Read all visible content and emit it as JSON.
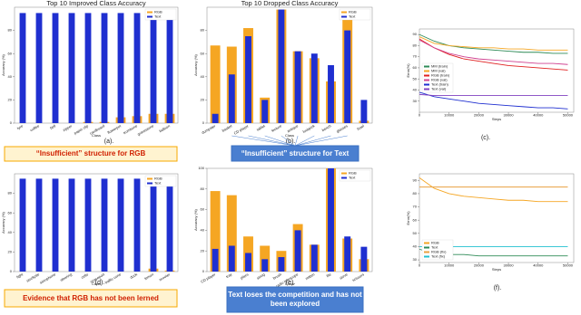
{
  "chart_data": [
    {
      "type": "bar",
      "title": "Top 10 Improved Class Accuracy",
      "x_label": "Class",
      "y_label": "Accuracy (%)",
      "legend": "upper right",
      "categories": [
        "tyre",
        "coffee",
        "bell",
        "zipper",
        "paper clip",
        "cardboard",
        "flowerpot",
        "trombone",
        "gravestone",
        "balloon"
      ],
      "series": [
        {
          "name": "RGB",
          "color": "#f5a623",
          "values": [
            0,
            0,
            0,
            0,
            1,
            1,
            5,
            6,
            8,
            8
          ]
        },
        {
          "name": "Text",
          "color": "#1f2fd0",
          "values": [
            95,
            95,
            95,
            95,
            95,
            95,
            95,
            95,
            95,
            95
          ]
        }
      ],
      "ylim": [
        0,
        100
      ],
      "yticks": [
        0,
        20,
        40,
        60,
        80
      ],
      "caption": "(a).",
      "callout": "“Insufficient”  structure for RGB"
    },
    {
      "type": "bar",
      "title": "Top 10 Dropped Class Accuracy",
      "x_label": "Class",
      "y_label": "Accuracy (%)",
      "legend": "upper right",
      "categories": [
        "dumpster",
        "basket",
        "CD player",
        "tablet",
        "lecture",
        "antique",
        "lockpick",
        "bench",
        "glasses",
        "bowl"
      ],
      "series": [
        {
          "name": "RGB",
          "color": "#f5a623",
          "values": [
            67,
            66,
            82,
            22,
            98,
            62,
            56,
            36,
            90,
            2
          ]
        },
        {
          "name": "Text",
          "color": "#1f2fd0",
          "values": [
            8,
            42,
            75,
            20,
            98,
            62,
            60,
            50,
            80,
            20
          ]
        }
      ],
      "ylim": [
        0,
        100
      ],
      "yticks": [
        0,
        20,
        40,
        60,
        80
      ],
      "caption": "(b).",
      "callout": "“Insufficient”   structure for Text"
    },
    {
      "type": "line",
      "x_label": "Steps",
      "y_label": "Error(%)",
      "legend": "center left",
      "x": [
        0,
        5000,
        10000,
        15000,
        20000,
        25000,
        30000,
        35000,
        40000,
        45000,
        50000
      ],
      "series": [
        {
          "name": "MM (train)",
          "color": "#2e8b57",
          "values": [
            90,
            84,
            80,
            78,
            77,
            76,
            75,
            74,
            74,
            73,
            73
          ]
        },
        {
          "name": "MM (val)",
          "color": "#f5a623",
          "values": [
            88,
            82,
            80,
            79,
            78,
            78,
            77,
            77,
            76,
            76,
            76
          ]
        },
        {
          "name": "RGB (train)",
          "color": "#e02020",
          "values": [
            86,
            78,
            72,
            68,
            66,
            64,
            62,
            61,
            60,
            59,
            58
          ]
        },
        {
          "name": "RGB (val)",
          "color": "#d04090",
          "values": [
            85,
            78,
            73,
            70,
            68,
            67,
            66,
            65,
            64,
            64,
            63
          ]
        },
        {
          "name": "Text (train)",
          "color": "#1f2fd0",
          "values": [
            38,
            34,
            32,
            30,
            28,
            27,
            26,
            25,
            24,
            24,
            23
          ]
        },
        {
          "name": "Text (val)",
          "color": "#8040c0",
          "values": [
            36,
            35,
            35,
            35,
            35,
            35,
            35,
            35,
            35,
            35,
            35
          ]
        }
      ],
      "xlim": [
        0,
        52000
      ],
      "xticks": [
        0,
        10000,
        20000,
        30000,
        40000,
        50000
      ],
      "ylim": [
        20,
        95
      ],
      "yticks": [
        30,
        40,
        50,
        60,
        70,
        80,
        90
      ],
      "caption": "(c)."
    },
    {
      "type": "bar",
      "x_label": "Class",
      "y_label": "Accuracy (%)",
      "legend": "upper right",
      "categories": [
        "light",
        "stockpile",
        "saxophone",
        "steering",
        "cello",
        "spaceport",
        "traffic cone",
        "dock",
        "lemon",
        "scooter"
      ],
      "series": [
        {
          "name": "RGB",
          "color": "#f5a623",
          "values": [
            0,
            0,
            0,
            0,
            0,
            0,
            0,
            0,
            3,
            1
          ]
        },
        {
          "name": "Text",
          "color": "#1f2fd0",
          "values": [
            95,
            95,
            95,
            95,
            95,
            95,
            95,
            95,
            90,
            95
          ]
        }
      ],
      "ylim": [
        0,
        100
      ],
      "yticks": [
        0,
        20,
        40,
        60,
        80
      ],
      "caption": "(d).",
      "callout": "Evidence that RGB has not been lerned"
    },
    {
      "type": "bar",
      "x_label": "Class",
      "y_label": "Accuracy (%)",
      "legend": "upper right",
      "categories": [
        "CD player",
        "tray",
        "pliers",
        "string",
        "brush",
        "radio telescope",
        "mitten",
        "file",
        "stove",
        "scissors"
      ],
      "series": [
        {
          "name": "RGB",
          "color": "#f5a623",
          "values": [
            78,
            74,
            34,
            25,
            20,
            46,
            26,
            100,
            32,
            12
          ]
        },
        {
          "name": "Text",
          "color": "#1f2fd0",
          "values": [
            22,
            25,
            18,
            12,
            14,
            40,
            26,
            100,
            34,
            24
          ]
        }
      ],
      "ylim": [
        0,
        100
      ],
      "yticks": [
        0,
        20,
        40,
        60,
        80,
        100
      ],
      "caption": "(e).",
      "callout": "Text loses the competition and has not been explored"
    },
    {
      "type": "line",
      "x_label": "Steps",
      "y_label": "Error(%)",
      "legend": "lower left",
      "x": [
        0,
        5000,
        10000,
        15000,
        20000,
        25000,
        30000,
        35000,
        40000,
        45000,
        50000
      ],
      "series": [
        {
          "name": "RGB",
          "color": "#f5a623",
          "values": [
            92,
            84,
            80,
            78,
            77,
            76,
            75,
            75,
            74,
            74,
            74
          ]
        },
        {
          "name": "Text",
          "color": "#2e8b57",
          "values": [
            38,
            35,
            34,
            34,
            33,
            33,
            33,
            33,
            33,
            33,
            33
          ]
        },
        {
          "name": "RGB (fix)",
          "color": "#e8a040",
          "values": [
            85,
            85,
            85,
            85,
            85,
            85,
            85,
            85,
            85,
            85,
            85
          ]
        },
        {
          "name": "Text (fix)",
          "color": "#20c0d0",
          "values": [
            40,
            40,
            40,
            40,
            40,
            40,
            40,
            40,
            40,
            40,
            40
          ]
        }
      ],
      "xlim": [
        0,
        52000
      ],
      "xticks": [
        0,
        10000,
        20000,
        30000,
        40000,
        50000
      ],
      "ylim": [
        28,
        95
      ],
      "yticks": [
        30,
        40,
        50,
        60,
        70,
        80,
        90
      ],
      "caption": "(f)."
    }
  ]
}
